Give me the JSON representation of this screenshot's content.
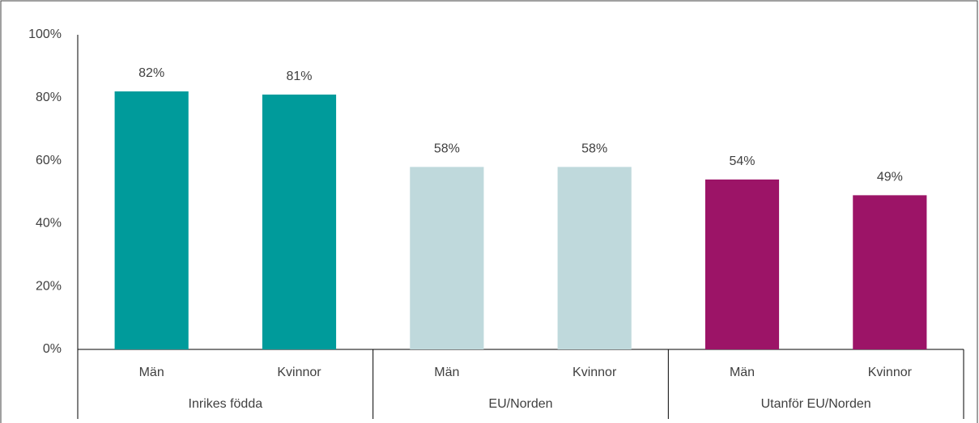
{
  "chart_data": {
    "type": "bar",
    "groups": [
      {
        "name": "Inrikes födda",
        "color": "#009b9b",
        "categories": [
          "Män",
          "Kvinnor"
        ],
        "values": [
          82,
          81
        ],
        "value_labels": [
          "82%",
          "81%"
        ]
      },
      {
        "name": "EU/Norden",
        "color": "#bfd9dc",
        "categories": [
          "Män",
          "Kvinnor"
        ],
        "values": [
          58,
          58
        ],
        "value_labels": [
          "58%",
          "58%"
        ]
      },
      {
        "name": "Utanför EU/Norden",
        "color": "#9c1467",
        "categories": [
          "Män",
          "Kvinnor"
        ],
        "values": [
          54,
          49
        ],
        "value_labels": [
          "54%",
          "49%"
        ]
      }
    ],
    "ylim": [
      0,
      100
    ],
    "yticks": [
      {
        "value": 0,
        "label": "0%"
      },
      {
        "value": 20,
        "label": "20%"
      },
      {
        "value": 40,
        "label": "40%"
      },
      {
        "value": 60,
        "label": "60%"
      },
      {
        "value": 80,
        "label": "80%"
      },
      {
        "value": 100,
        "label": "100%"
      }
    ],
    "grid": false
  }
}
